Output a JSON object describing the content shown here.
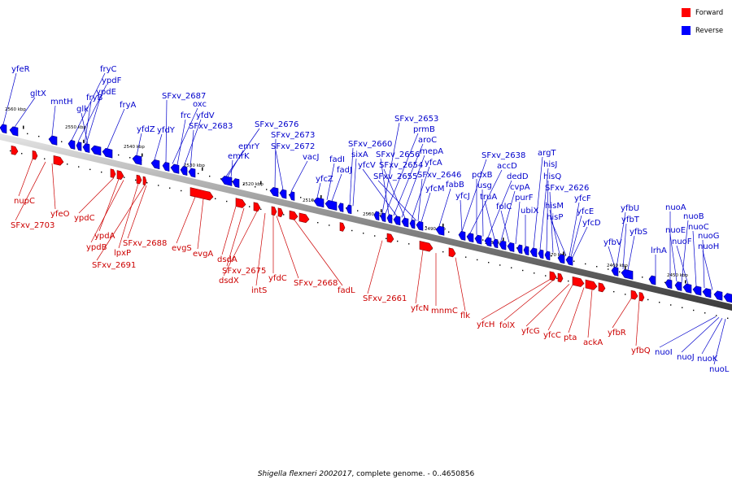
{
  "legend": {
    "items": [
      {
        "label": "Forward",
        "color": "#ff0000"
      },
      {
        "label": "Reverse",
        "color": "#0000ff"
      }
    ]
  },
  "caption": {
    "organism": "Shigella flexneri 2002017",
    "rest": ", complete genome. - 0..4650856"
  },
  "ticks": [
    "2560 kbp",
    "2550 kbp",
    "2540 kbp",
    "2530 kbp",
    "2520 kbp",
    "2510 kbp",
    "2500 kbp",
    "2490 kbp",
    "2480 kbp",
    "2470 kbp",
    "2460 kbp",
    "2450 kbp"
  ],
  "genes_forward": [
    "nupC",
    "SFxv_2703",
    "yfeO",
    "ypdC",
    "ypdA",
    "ypdB",
    "lpxP",
    "SFxv_2691",
    "SFxv_2688",
    "evgS",
    "evgA",
    "dsdA",
    "SFxv_2675",
    "dsdX",
    "intS",
    "yfdC",
    "SFxv_2668",
    "fadL",
    "SFxv_2661",
    "yfcN",
    "mnmC",
    "flk",
    "yfcH",
    "folX",
    "yfcG",
    "yfcC",
    "pta",
    "ackA",
    "yfbR",
    "yfbQ"
  ],
  "genes_reverse": [
    "yfeR",
    "gltX",
    "mntH",
    "fryC",
    "ypdF",
    "fryB",
    "ypdE",
    "glk",
    "fryA",
    "yfdZ",
    "yfdY",
    "SFxv_2687",
    "oxc",
    "frc",
    "yfdV",
    "SFxv_2683",
    "SFxv_2676",
    "emrY",
    "SFxv_2673",
    "emrK",
    "SFxv_2672",
    "vacJ",
    "yfcZ",
    "fadI",
    "fadJ",
    "SFxv_2660",
    "sixA",
    "SFxv_2653",
    "prmB",
    "SFxv_2656",
    "aroC",
    "yfcV",
    "mepA",
    "SFxv_2654",
    "yfcA",
    "SFxv_2655",
    "SFxv_2646",
    "yfcM",
    "fabB",
    "yfcJ",
    "SFxv_2638",
    "accD",
    "pdxB",
    "usg",
    "dedD",
    "truA",
    "cvpA",
    "folC",
    "purF",
    "ubiX",
    "argT",
    "hisJ",
    "hisQ",
    "SFxv_2626",
    "hisM",
    "hisP",
    "yfcF",
    "yfcE",
    "yfcD",
    "yfbV",
    "yfbU",
    "yfbT",
    "yfbS",
    "lrhA",
    "nuoA",
    "nuoE",
    "nuoB",
    "nuoF",
    "nuoC",
    "nuoG",
    "nuoH",
    "nuoI",
    "nuoJ",
    "nuoK",
    "nuoL"
  ]
}
